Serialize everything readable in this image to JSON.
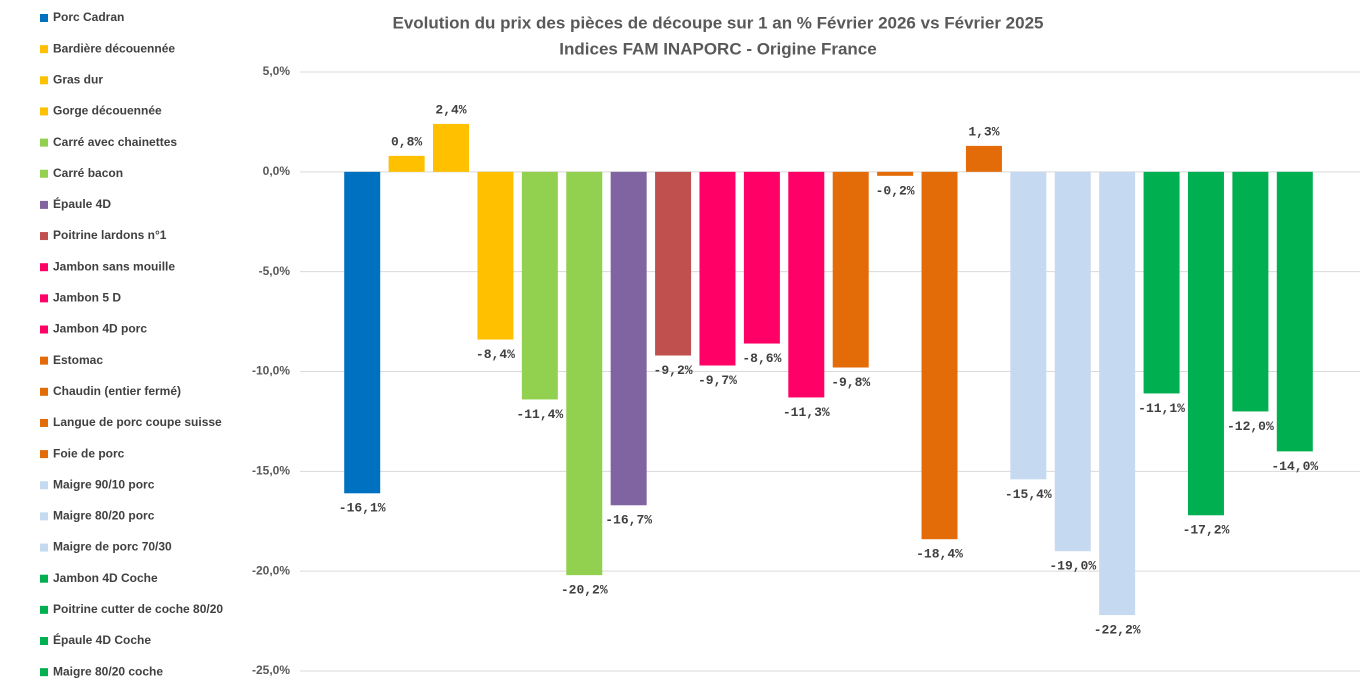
{
  "chart_data": {
    "type": "bar",
    "title": "Evolution du prix des pièces de découpe sur 1 an % Février 2026 vs Février 2025",
    "subtitle": "Indices FAM INAPORC - Origine France",
    "categories": [
      "Porc Cadran",
      "Bardière découennée",
      "Gras dur",
      "Gorge découennée",
      "Carré avec chainettes",
      "Carré bacon",
      "Épaule 4D",
      "Poitrine lardons n°1",
      "Jambon sans mouille",
      "Jambon 5 D",
      "Jambon 4D porc",
      "Estomac",
      "Chaudin (entier fermé)",
      "Langue de porc coupe suisse",
      "Foie de porc",
      "Maigre 90/10 porc",
      "Maigre 80/20 porc",
      "Maigre de porc 70/30",
      "Jambon 4D Coche",
      "Poitrine cutter de coche 80/20",
      "Épaule 4D Coche",
      "Maigre 80/20 coche"
    ],
    "values": [
      -16.1,
      0.8,
      2.4,
      -8.4,
      -11.4,
      -20.2,
      -16.7,
      -9.2,
      -9.7,
      -8.6,
      -11.3,
      -9.8,
      -0.2,
      -18.4,
      1.3,
      -15.4,
      -19.0,
      -22.2,
      -11.1,
      -17.2,
      -12.0,
      -14.0
    ],
    "value_labels": [
      "-16,1%",
      "0,8%",
      "2,4%",
      "-8,4%",
      "-11,4%",
      "-20,2%",
      "-16,7%",
      "-9,2%",
      "-9,7%",
      "-8,6%",
      "-11,3%",
      "-9,8%",
      "-0,2%",
      "-18,4%",
      "1,3%",
      "-15,4%",
      "-19,0%",
      "-22,2%",
      "-11,1%",
      "-17,2%",
      "-12,0%",
      "-14,0%"
    ],
    "colors": [
      "#0070c0",
      "#ffc000",
      "#ffc000",
      "#ffc000",
      "#92d050",
      "#92d050",
      "#8064a2",
      "#c0504d",
      "#ff0066",
      "#ff0066",
      "#ff0066",
      "#e36c09",
      "#e36c09",
      "#e36c09",
      "#e36c09",
      "#c5d9f1",
      "#c5d9f1",
      "#c5d9f1",
      "#00b050",
      "#00b050",
      "#00b050",
      "#00b050"
    ],
    "ylim": [
      -25,
      5
    ],
    "yticks": [
      {
        "value": -25,
        "label": "-25,0%"
      },
      {
        "value": -20,
        "label": "-20,0%"
      },
      {
        "value": -15,
        "label": "-15,0%"
      },
      {
        "value": -10,
        "label": "-10,0%"
      },
      {
        "value": -5,
        "label": "-5,0%"
      },
      {
        "value": 0,
        "label": "0,0%"
      },
      {
        "value": 5,
        "label": "5,0%"
      }
    ],
    "grid": true,
    "legend": "left"
  }
}
